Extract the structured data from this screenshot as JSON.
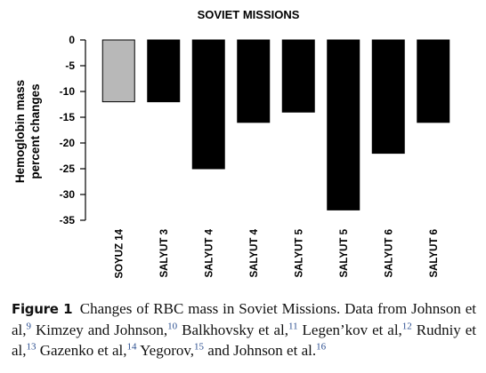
{
  "chart_data": {
    "type": "bar",
    "title": "SOVIET MISSIONS",
    "ylabel_line1": "Hemoglobin mass",
    "ylabel_line2": "percent changes",
    "xlabel": "",
    "ylim": [
      -35,
      0
    ],
    "yticks": [
      0,
      -5,
      -10,
      -15,
      -20,
      -25,
      -30,
      -35
    ],
    "categories": [
      "SOYUZ 14",
      "SALYUT 3",
      "SALYUT 4",
      "SALYUT 4",
      "SALYUT 5",
      "SALYUT 5",
      "SALYUT 6",
      "SALYUT 6"
    ],
    "values": [
      -12,
      -12,
      -25,
      -16,
      -14,
      -33,
      -22,
      -16
    ],
    "bar_colors": [
      "#b8b8b8",
      "#000000",
      "#000000",
      "#000000",
      "#000000",
      "#000000",
      "#000000",
      "#000000"
    ],
    "grid": false,
    "legend": "none"
  },
  "caption": {
    "label": "Figure 1",
    "segments": [
      {
        "t": "Changes of RBC mass in Soviet Missions. Data from Johnson et al,"
      },
      {
        "s": "9"
      },
      {
        "t": " Kimzey and Johnson,"
      },
      {
        "s": "10"
      },
      {
        "t": " Balkhovsky et al,"
      },
      {
        "s": "11"
      },
      {
        "t": " Legen’kov et al,"
      },
      {
        "s": "12"
      },
      {
        "t": " Rudniy et al,"
      },
      {
        "s": "13"
      },
      {
        "t": " Gazenko et al,"
      },
      {
        "s": "14"
      },
      {
        "t": " Yegorov,"
      },
      {
        "s": "15"
      },
      {
        "t": " and Johnson et al."
      },
      {
        "s": "16"
      }
    ]
  }
}
